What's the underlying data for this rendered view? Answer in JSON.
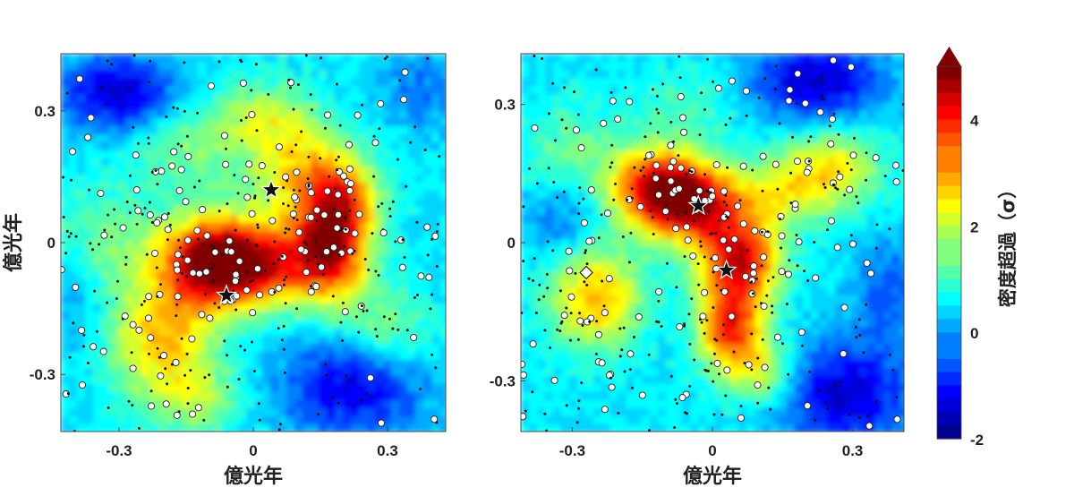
{
  "chart_data": [
    {
      "type": "heatmap",
      "panel": "left",
      "xlabel": "億光年",
      "ylabel": "億光年",
      "xlim": [
        -0.43,
        0.43
      ],
      "ylim": [
        -0.43,
        0.43
      ],
      "x_ticks": [
        {
          "value": -0.3,
          "label": "-0.3"
        },
        {
          "value": 0,
          "label": "0"
        },
        {
          "value": 0.3,
          "label": "0.3"
        }
      ],
      "y_ticks": [
        {
          "value": 0.3,
          "label": "0.3"
        },
        {
          "value": 0,
          "label": "0"
        },
        {
          "value": -0.3,
          "label": "-0.3"
        }
      ],
      "density_peaks": [
        {
          "x": -0.1,
          "y": -0.04,
          "sx": 0.08,
          "sy": 0.07,
          "amp": 3.6
        },
        {
          "x": 0.0,
          "y": -0.05,
          "sx": 0.09,
          "sy": 0.07,
          "amp": 3.3
        },
        {
          "x": 0.17,
          "y": -0.02,
          "sx": 0.06,
          "sy": 0.08,
          "amp": 3.8
        },
        {
          "x": 0.2,
          "y": 0.1,
          "sx": 0.06,
          "sy": 0.07,
          "amp": 2.4
        },
        {
          "x": 0.1,
          "y": 0.16,
          "sx": 0.08,
          "sy": 0.07,
          "amp": 1.8
        },
        {
          "x": 0.03,
          "y": 0.28,
          "sx": 0.08,
          "sy": 0.06,
          "amp": 1.5
        },
        {
          "x": -0.2,
          "y": -0.22,
          "sx": 0.08,
          "sy": 0.09,
          "amp": 2.4
        },
        {
          "x": -0.33,
          "y": 0.0,
          "sx": 0.09,
          "sy": 0.1,
          "amp": 0.9
        },
        {
          "x": -0.15,
          "y": 0.22,
          "sx": 0.08,
          "sy": 0.07,
          "amp": 1.0
        },
        {
          "x": 0.3,
          "y": -0.2,
          "sx": 0.07,
          "sy": 0.07,
          "amp": 1.1
        },
        {
          "x": -0.12,
          "y": -0.36,
          "sx": 0.07,
          "sy": 0.05,
          "amp": 1.2
        }
      ],
      "density_troughs": [
        {
          "x": -0.3,
          "y": 0.34,
          "sx": 0.09,
          "sy": 0.06,
          "amp": -2.0
        },
        {
          "x": 0.22,
          "y": -0.33,
          "sx": 0.11,
          "sy": 0.08,
          "amp": -1.8
        },
        {
          "x": 0.38,
          "y": 0.35,
          "sx": 0.06,
          "sy": 0.06,
          "amp": -0.8
        },
        {
          "x": -0.4,
          "y": -0.12,
          "sx": 0.05,
          "sy": 0.08,
          "amp": -0.6
        }
      ],
      "stars": [
        {
          "x": 0.04,
          "y": 0.12
        },
        {
          "x": -0.06,
          "y": -0.12
        }
      ],
      "diamonds": []
    },
    {
      "type": "heatmap",
      "panel": "right",
      "xlabel": "億光年",
      "ylabel": "",
      "xlim": [
        -0.41,
        0.41
      ],
      "ylim": [
        -0.41,
        0.41
      ],
      "x_ticks": [
        {
          "value": -0.3,
          "label": "-0.3"
        },
        {
          "value": 0,
          "label": "0"
        },
        {
          "value": 0.3,
          "label": "0.3"
        }
      ],
      "y_ticks": [
        {
          "value": 0.3,
          "label": "0.3"
        },
        {
          "value": 0,
          "label": "0"
        },
        {
          "value": -0.3,
          "label": "-0.3"
        }
      ],
      "density_peaks": [
        {
          "x": -0.12,
          "y": 0.12,
          "sx": 0.07,
          "sy": 0.06,
          "amp": 3.8
        },
        {
          "x": -0.03,
          "y": 0.08,
          "sx": 0.07,
          "sy": 0.06,
          "amp": 3.4
        },
        {
          "x": 0.06,
          "y": -0.04,
          "sx": 0.06,
          "sy": 0.06,
          "amp": 3.8
        },
        {
          "x": 0.04,
          "y": -0.18,
          "sx": 0.05,
          "sy": 0.06,
          "amp": 3.4
        },
        {
          "x": 0.25,
          "y": 0.16,
          "sx": 0.08,
          "sy": 0.06,
          "amp": 2.0
        },
        {
          "x": 0.14,
          "y": 0.1,
          "sx": 0.07,
          "sy": 0.05,
          "amp": 1.4
        },
        {
          "x": -0.25,
          "y": -0.12,
          "sx": 0.07,
          "sy": 0.08,
          "amp": 2.4
        },
        {
          "x": 0.1,
          "y": -0.28,
          "sx": 0.06,
          "sy": 0.05,
          "amp": 1.7
        },
        {
          "x": -0.3,
          "y": 0.2,
          "sx": 0.07,
          "sy": 0.07,
          "amp": 0.9
        },
        {
          "x": -0.05,
          "y": 0.3,
          "sx": 0.08,
          "sy": 0.06,
          "amp": 0.7
        }
      ],
      "density_troughs": [
        {
          "x": 0.22,
          "y": 0.35,
          "sx": 0.1,
          "sy": 0.06,
          "amp": -2.0
        },
        {
          "x": 0.28,
          "y": -0.33,
          "sx": 0.1,
          "sy": 0.08,
          "amp": -2.0
        },
        {
          "x": -0.32,
          "y": 0.05,
          "sx": 0.06,
          "sy": 0.06,
          "amp": -0.8
        },
        {
          "x": 0.38,
          "y": -0.1,
          "sx": 0.05,
          "sy": 0.08,
          "amp": -1.0
        }
      ],
      "stars": [
        {
          "x": -0.03,
          "y": 0.08
        },
        {
          "x": 0.03,
          "y": -0.06
        }
      ],
      "diamonds": [
        {
          "x": -0.27,
          "y": -0.065
        }
      ]
    }
  ],
  "colorbar": {
    "label": "密度超過（σ）",
    "min": -2,
    "max": 5,
    "ticks": [
      {
        "value": 4,
        "label": "4"
      },
      {
        "value": 2,
        "label": "2"
      },
      {
        "value": 0,
        "label": "0"
      },
      {
        "value": -2,
        "label": "-2"
      }
    ]
  },
  "colormap": [
    "#00008f",
    "#0000ff",
    "#0080ff",
    "#00ffff",
    "#80ff80",
    "#ffff00",
    "#ff8000",
    "#ff0000",
    "#800000"
  ]
}
